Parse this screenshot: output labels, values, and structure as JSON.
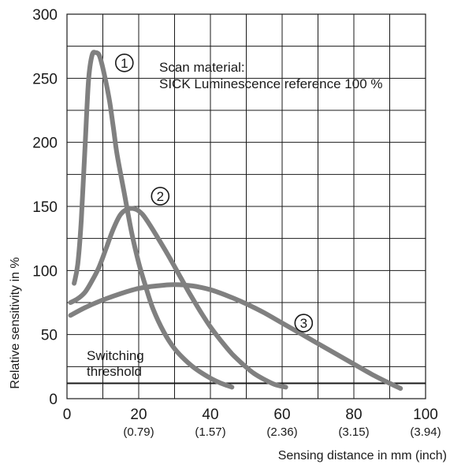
{
  "chart_data": {
    "type": "line",
    "xlabel": "Sensing distance in mm (inch)",
    "ylabel": "Relative sensitivity in %",
    "xlim": [
      0,
      100
    ],
    "ylim": [
      0,
      300
    ],
    "grid": true,
    "x_ticks": [
      {
        "value": 0,
        "label": "0",
        "sub": ""
      },
      {
        "value": 20,
        "label": "20",
        "sub": "(0.79)"
      },
      {
        "value": 40,
        "label": "40",
        "sub": "(1.57)"
      },
      {
        "value": 60,
        "label": "60",
        "sub": "(2.36)"
      },
      {
        "value": 80,
        "label": "80",
        "sub": "(3.15)"
      },
      {
        "value": 100,
        "label": "100",
        "sub": "(3.94)"
      }
    ],
    "y_ticks": [
      {
        "value": 0,
        "label": "0"
      },
      {
        "value": 50,
        "label": "50"
      },
      {
        "value": 100,
        "label": "100"
      },
      {
        "value": 150,
        "label": "150"
      },
      {
        "value": 200,
        "label": "200"
      },
      {
        "value": 250,
        "label": "250"
      },
      {
        "value": 300,
        "label": "300"
      }
    ],
    "annotation_lines": [
      "Scan material:",
      "SICK Luminescence reference 100 %"
    ],
    "threshold": {
      "value": 12,
      "label_lines": [
        "Switching",
        "threshold"
      ]
    },
    "line_color": "#808080",
    "threshold_color": "#1a1a1a",
    "series": [
      {
        "marker": "①",
        "marker_pos": {
          "x": 16,
          "y": 262
        },
        "x": [
          2,
          3,
          4,
          5,
          6,
          7,
          8,
          9,
          10,
          11,
          12,
          13,
          14,
          16,
          18,
          20,
          22,
          24,
          27,
          30,
          33,
          36,
          40,
          43,
          46
        ],
        "y": [
          90,
          105,
          140,
          195,
          248,
          268,
          270,
          268,
          258,
          245,
          230,
          210,
          190,
          160,
          130,
          106,
          87,
          70,
          52,
          39,
          30,
          23,
          16,
          12,
          9
        ]
      },
      {
        "marker": "②",
        "marker_pos": {
          "x": 26,
          "y": 158
        },
        "x": [
          1,
          3,
          5,
          7,
          9,
          11,
          13,
          15,
          17,
          19,
          21,
          23,
          25,
          28,
          31,
          34,
          37,
          40,
          43,
          46,
          49,
          52,
          55,
          58,
          61
        ],
        "y": [
          75,
          78,
          83,
          92,
          103,
          118,
          133,
          144,
          148,
          148,
          144,
          136,
          127,
          113,
          98,
          83,
          69,
          56,
          45,
          35,
          27,
          20,
          15,
          11,
          9
        ]
      },
      {
        "marker": "③",
        "marker_pos": {
          "x": 66,
          "y": 59
        },
        "x": [
          1,
          5,
          10,
          15,
          20,
          25,
          30,
          35,
          40,
          45,
          50,
          55,
          60,
          65,
          70,
          75,
          80,
          85,
          90,
          93
        ],
        "y": [
          65,
          71,
          77,
          82,
          86,
          88,
          89,
          88,
          85,
          80,
          74,
          67,
          59,
          51,
          43,
          35,
          27,
          19,
          12,
          8
        ]
      }
    ]
  }
}
